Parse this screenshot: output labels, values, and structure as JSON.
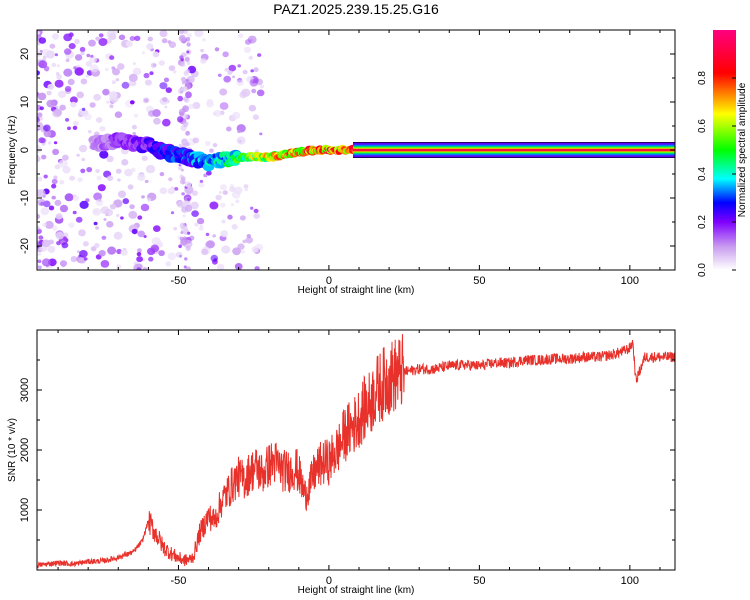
{
  "page": {
    "title": "PAZ1.2025.239.15.25.G16"
  },
  "chart_data": [
    {
      "type": "heatmap",
      "xlabel": "Height of straight line (km)",
      "ylabel": "Frequency (Hz)",
      "xlim": [
        -97,
        115
      ],
      "ylim": [
        -25,
        25
      ],
      "x_ticks": [
        -50,
        0,
        50,
        100
      ],
      "y_ticks": [
        -20,
        -10,
        0,
        10,
        20
      ],
      "colorbar": {
        "label": "Normalized spectral amplitude",
        "range": [
          0,
          1
        ],
        "ticks": [
          0.0,
          0.2,
          0.4,
          0.6,
          0.8
        ],
        "tick_labels": [
          "0.0",
          "0.2",
          "0.4",
          "0.6",
          "0.8"
        ],
        "colors": [
          "#e8d8f8",
          "#c898f0",
          "#8000ff",
          "#0000ff",
          "#00ffff",
          "#00ff00",
          "#ffff00",
          "#ff0000",
          "#ff0080"
        ]
      },
      "ridge": [
        {
          "x": -75,
          "freq": 1.5,
          "amp": 0.15
        },
        {
          "x": -70,
          "freq": 2.0,
          "amp": 0.2
        },
        {
          "x": -65,
          "freq": 1.5,
          "amp": 0.22
        },
        {
          "x": -60,
          "freq": 1.0,
          "amp": 0.25
        },
        {
          "x": -55,
          "freq": -0.5,
          "amp": 0.3
        },
        {
          "x": -50,
          "freq": -1.0,
          "amp": 0.32
        },
        {
          "x": -45,
          "freq": -2.0,
          "amp": 0.35
        },
        {
          "x": -40,
          "freq": -2.5,
          "amp": 0.4
        },
        {
          "x": -35,
          "freq": -2.0,
          "amp": 0.45
        },
        {
          "x": -30,
          "freq": -1.5,
          "amp": 0.55
        },
        {
          "x": -25,
          "freq": -1.5,
          "amp": 0.65
        },
        {
          "x": -20,
          "freq": -1.5,
          "amp": 0.72
        },
        {
          "x": -15,
          "freq": -1.0,
          "amp": 0.78
        },
        {
          "x": -10,
          "freq": -0.5,
          "amp": 0.82
        },
        {
          "x": -5,
          "freq": 0.0,
          "amp": 0.86
        },
        {
          "x": 0,
          "freq": 0.0,
          "amp": 0.9
        },
        {
          "x": 10,
          "freq": 0.0,
          "amp": 0.95
        },
        {
          "x": 115,
          "freq": 0.0,
          "amp": 1.0
        }
      ]
    },
    {
      "type": "line",
      "xlabel": "Height of straight line (km)",
      "ylabel": "SNR (10 * v/v)",
      "xlim": [
        -97,
        115
      ],
      "ylim": [
        0,
        4000
      ],
      "x_ticks": [
        -50,
        0,
        50,
        100
      ],
      "y_ticks": [
        1000,
        2000,
        3000
      ],
      "color": "#e8312a",
      "series": [
        {
          "x": [
            -97,
            -90,
            -85,
            -80,
            -75,
            -70,
            -65,
            -62,
            -60,
            -58,
            -55,
            -52,
            -50,
            -48,
            -46,
            -45,
            -43,
            -40,
            -38,
            -36,
            -35,
            -33,
            -31,
            -30,
            -28,
            -26,
            -24,
            -22,
            -20,
            -18,
            -16,
            -15,
            -13,
            -11,
            -10,
            -8,
            -6,
            -5,
            -3,
            -1,
            0,
            2,
            4,
            5,
            7,
            9,
            10,
            12,
            14,
            15,
            17,
            19,
            20,
            22,
            24,
            25,
            27,
            30,
            35,
            40,
            45,
            50,
            55,
            60,
            65,
            70,
            75,
            80,
            85,
            90,
            95,
            98,
            100,
            101,
            102,
            105,
            110,
            115
          ],
          "y": [
            80,
            120,
            100,
            140,
            150,
            210,
            300,
            480,
            820,
            650,
            380,
            260,
            200,
            160,
            180,
            230,
            600,
            900,
            820,
            1100,
            1200,
            1350,
            1500,
            1550,
            1500,
            1650,
            1700,
            1600,
            1750,
            1800,
            1700,
            1650,
            1650,
            1700,
            1600,
            1250,
            1450,
            1600,
            1750,
            1800,
            1800,
            1950,
            2100,
            2250,
            2350,
            2450,
            2550,
            2700,
            2800,
            2950,
            3050,
            3150,
            3200,
            3250,
            3300,
            3300,
            3320,
            3350,
            3350,
            3400,
            3420,
            3400,
            3450,
            3450,
            3500,
            3500,
            3520,
            3520,
            3550,
            3550,
            3600,
            3650,
            3700,
            3800,
            3150,
            3550,
            3550,
            3550
          ]
        }
      ]
    }
  ]
}
